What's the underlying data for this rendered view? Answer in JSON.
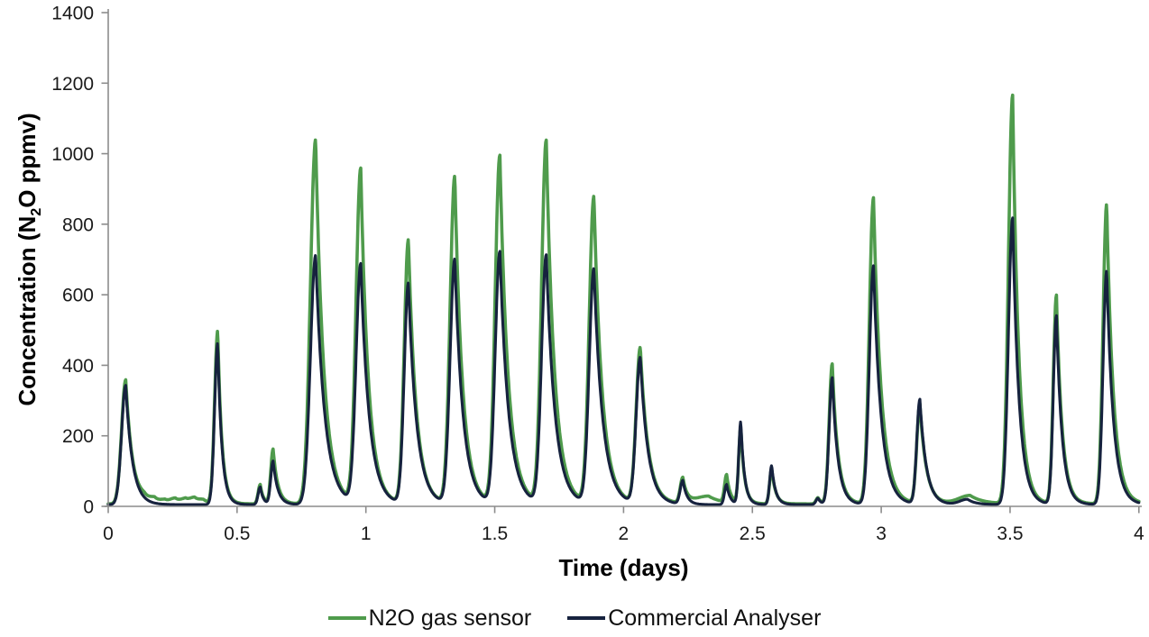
{
  "chart_data": {
    "type": "line",
    "title": "",
    "xlabel": "Time (days)",
    "ylabel": "Concentration (N2O ppmv)",
    "ylabel_parts": {
      "prefix": "Concentration (N",
      "sub": "2",
      "suffix": "O ppmv)"
    },
    "xlim": [
      0,
      4
    ],
    "ylim": [
      0,
      1400
    ],
    "x_ticks": [
      0,
      0.5,
      1,
      1.5,
      2,
      2.5,
      3,
      3.5,
      4
    ],
    "x_tick_labels": [
      "0",
      "0.5",
      "1",
      "1.5",
      "2",
      "2.5",
      "3",
      "3.5",
      "4"
    ],
    "y_ticks": [
      0,
      200,
      400,
      600,
      800,
      1000,
      1200,
      1400
    ],
    "y_tick_labels": [
      "0",
      "200",
      "400",
      "600",
      "800",
      "1000",
      "1200",
      "1400"
    ],
    "grid": false,
    "legend_position": "bottom-center",
    "axis_color": "#8c8c8c",
    "tick_text_color": "#1a1a1a",
    "peak_model_note": "peaks entries are [time_days, peak_height_ppmv_above_baseline, rise_width_days, decay_tau_days]; curve = baseline + sum of peaks (gaussian rise, exponential decay)",
    "series": [
      {
        "name": "N2O gas sensor",
        "color": "#4f9b4c",
        "stroke_width": 3.6,
        "baseline": 7,
        "peaks": [
          [
            0.068,
            352,
            0.016,
            0.026
          ],
          [
            0.14,
            10,
            0.02,
            0.02
          ],
          [
            0.18,
            13,
            0.02,
            0.02
          ],
          [
            0.22,
            9,
            0.02,
            0.02
          ],
          [
            0.26,
            14,
            0.02,
            0.02
          ],
          [
            0.3,
            12,
            0.02,
            0.02
          ],
          [
            0.335,
            15,
            0.02,
            0.02
          ],
          [
            0.37,
            10,
            0.02,
            0.02
          ],
          [
            0.425,
            490,
            0.012,
            0.016
          ],
          [
            0.59,
            55,
            0.008,
            0.012
          ],
          [
            0.64,
            155,
            0.009,
            0.018
          ],
          [
            0.805,
            1033,
            0.02,
            0.032
          ],
          [
            0.98,
            948,
            0.018,
            0.03
          ],
          [
            1.165,
            748,
            0.016,
            0.03
          ],
          [
            1.345,
            928,
            0.018,
            0.03
          ],
          [
            1.52,
            986,
            0.018,
            0.032
          ],
          [
            1.7,
            1028,
            0.018,
            0.032
          ],
          [
            1.885,
            870,
            0.018,
            0.032
          ],
          [
            2.065,
            441,
            0.016,
            0.03
          ],
          [
            2.23,
            71,
            0.01,
            0.016
          ],
          [
            2.33,
            22,
            0.05,
            0.05
          ],
          [
            2.4,
            78,
            0.008,
            0.014
          ],
          [
            2.455,
            215,
            0.008,
            0.014
          ],
          [
            2.575,
            100,
            0.008,
            0.015
          ],
          [
            2.755,
            18,
            0.008,
            0.012
          ],
          [
            2.81,
            397,
            0.012,
            0.022
          ],
          [
            2.97,
            868,
            0.016,
            0.03
          ],
          [
            3.15,
            282,
            0.012,
            0.025
          ],
          [
            3.345,
            24,
            0.045,
            0.05
          ],
          [
            3.51,
            1158,
            0.016,
            0.024
          ],
          [
            3.68,
            591,
            0.012,
            0.022
          ],
          [
            3.875,
            850,
            0.014,
            0.026
          ]
        ]
      },
      {
        "name": "Commercial Analyser",
        "color": "#16223e",
        "stroke_width": 3.1,
        "baseline": 5,
        "peaks": [
          [
            0.068,
            338,
            0.016,
            0.026
          ],
          [
            0.425,
            458,
            0.012,
            0.016
          ],
          [
            0.59,
            50,
            0.008,
            0.012
          ],
          [
            0.64,
            123,
            0.009,
            0.018
          ],
          [
            0.805,
            707,
            0.02,
            0.035
          ],
          [
            0.98,
            679,
            0.018,
            0.033
          ],
          [
            1.165,
            627,
            0.016,
            0.032
          ],
          [
            1.345,
            695,
            0.018,
            0.032
          ],
          [
            1.52,
            715,
            0.018,
            0.034
          ],
          [
            1.7,
            705,
            0.018,
            0.034
          ],
          [
            1.885,
            667,
            0.018,
            0.034
          ],
          [
            2.065,
            415,
            0.016,
            0.03
          ],
          [
            2.23,
            67,
            0.01,
            0.016
          ],
          [
            2.4,
            57,
            0.008,
            0.014
          ],
          [
            2.455,
            235,
            0.008,
            0.014
          ],
          [
            2.575,
            111,
            0.008,
            0.015
          ],
          [
            2.755,
            18,
            0.008,
            0.012
          ],
          [
            2.81,
            360,
            0.012,
            0.022
          ],
          [
            2.97,
            677,
            0.016,
            0.03
          ],
          [
            3.15,
            297,
            0.012,
            0.025
          ],
          [
            3.335,
            15,
            0.03,
            0.03
          ],
          [
            3.51,
            813,
            0.016,
            0.025
          ],
          [
            3.68,
            535,
            0.012,
            0.022
          ],
          [
            3.875,
            663,
            0.014,
            0.026
          ]
        ]
      }
    ]
  },
  "legend": {
    "items": [
      {
        "label": "N2O gas sensor"
      },
      {
        "label": "Commercial Analyser"
      }
    ]
  }
}
